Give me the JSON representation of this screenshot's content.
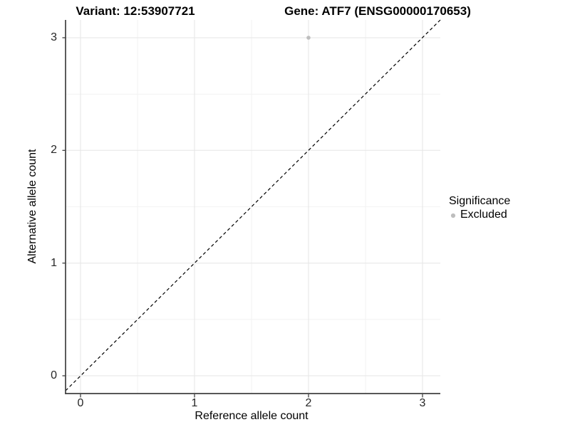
{
  "chart_data": {
    "type": "scatter",
    "title_left": "Variant: 12:53907721",
    "title_right": "Gene: ATF7 (ENSG00000170653)",
    "xlabel": "Reference allele count",
    "ylabel": "Alternative allele count",
    "xlim": [
      -0.15,
      3.15
    ],
    "ylim": [
      -0.15,
      3.15
    ],
    "x_ticks": [
      0,
      1,
      2,
      3
    ],
    "y_ticks": [
      0,
      1,
      2,
      3
    ],
    "x_tick_labels": [
      "0",
      "1",
      "2",
      "3"
    ],
    "y_tick_labels": [
      "0",
      "1",
      "2",
      "3"
    ],
    "grid": "major at integers, minor at 0.5 steps, light gray on white",
    "reference_line": {
      "type": "identity y=x",
      "style": "dashed",
      "color": "#000000"
    },
    "series": [
      {
        "name": "Excluded",
        "color": "#bebebe",
        "points": [
          {
            "x": 2,
            "y": 3
          }
        ]
      }
    ],
    "legend": {
      "title": "Significance",
      "position": "right-middle",
      "items": [
        {
          "label": "Excluded",
          "color": "#bebebe"
        }
      ]
    }
  },
  "colors": {
    "background": "#ffffff",
    "grid_major": "#e5e5e5",
    "grid_minor": "#f2f2f2",
    "axis_line": "#404040",
    "tick_text": "#262626",
    "point": "#bebebe"
  }
}
